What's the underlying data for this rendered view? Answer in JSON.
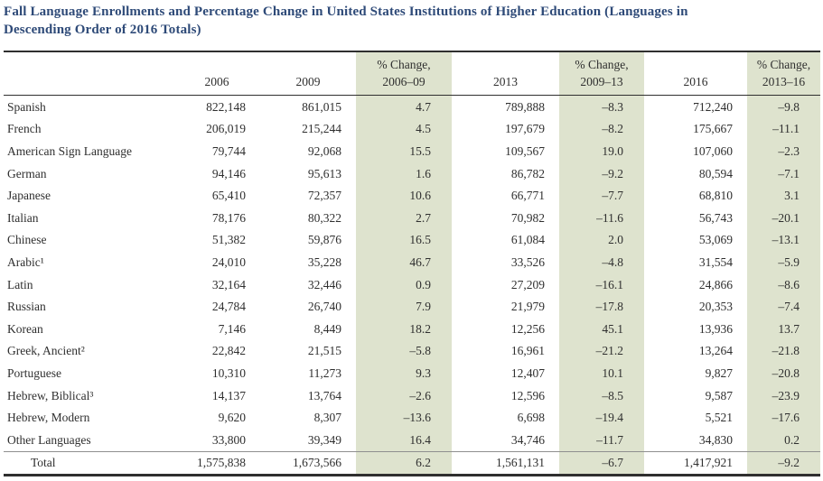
{
  "title": {
    "line1": "Fall Language Enrollments and Percentage Change in United States Institutions of Higher Education (Languages in",
    "line2": "Descending Order of 2016 Totals)"
  },
  "colors": {
    "title_text": "#2e4a78",
    "shaded_column": "#dee3ce",
    "rule": "#2f2f2f"
  },
  "table": {
    "columns": [
      {
        "id": "language",
        "header_line1": "",
        "header_line2": "",
        "shaded": false
      },
      {
        "id": "2006",
        "header_line1": "",
        "header_line2": "2006",
        "shaded": false
      },
      {
        "id": "2009",
        "header_line1": "",
        "header_line2": "2009",
        "shaded": false
      },
      {
        "id": "pct-change-2006-09",
        "header_line1": "% Change,",
        "header_line2": "2006–09",
        "shaded": true
      },
      {
        "id": "2013",
        "header_line1": "",
        "header_line2": "2013",
        "shaded": false
      },
      {
        "id": "pct-change-2009-13",
        "header_line1": "% Change,",
        "header_line2": "2009–13",
        "shaded": true
      },
      {
        "id": "2016",
        "header_line1": "",
        "header_line2": "2016",
        "shaded": false
      },
      {
        "id": "pct-change-2013-16",
        "header_line1": "% Change,",
        "header_line2": "2013–16",
        "shaded": true
      }
    ],
    "rows": [
      {
        "language": "Spanish",
        "values": [
          "822,148",
          "861,015",
          "4.7",
          "789,888",
          "–8.3",
          "712,240",
          "–9.8"
        ]
      },
      {
        "language": "French",
        "values": [
          "206,019",
          "215,244",
          "4.5",
          "197,679",
          "–8.2",
          "175,667",
          "–11.1"
        ]
      },
      {
        "language": "American Sign Language",
        "values": [
          "79,744",
          "92,068",
          "15.5",
          "109,567",
          "19.0",
          "107,060",
          "–2.3"
        ]
      },
      {
        "language": "German",
        "values": [
          "94,146",
          "95,613",
          "1.6",
          "86,782",
          "–9.2",
          "80,594",
          "–7.1"
        ]
      },
      {
        "language": "Japanese",
        "values": [
          "65,410",
          "72,357",
          "10.6",
          "66,771",
          "–7.7",
          "68,810",
          "3.1"
        ]
      },
      {
        "language": "Italian",
        "values": [
          "78,176",
          "80,322",
          "2.7",
          "70,982",
          "–11.6",
          "56,743",
          "–20.1"
        ]
      },
      {
        "language": "Chinese",
        "values": [
          "51,382",
          "59,876",
          "16.5",
          "61,084",
          "2.0",
          "53,069",
          "–13.1"
        ]
      },
      {
        "language": "Arabic¹",
        "values": [
          "24,010",
          "35,228",
          "46.7",
          "33,526",
          "–4.8",
          "31,554",
          "–5.9"
        ]
      },
      {
        "language": "Latin",
        "values": [
          "32,164",
          "32,446",
          "0.9",
          "27,209",
          "–16.1",
          "24,866",
          "–8.6"
        ]
      },
      {
        "language": "Russian",
        "values": [
          "24,784",
          "26,740",
          "7.9",
          "21,979",
          "–17.8",
          "20,353",
          "–7.4"
        ]
      },
      {
        "language": "Korean",
        "values": [
          "7,146",
          "8,449",
          "18.2",
          "12,256",
          "45.1",
          "13,936",
          "13.7"
        ]
      },
      {
        "language": "Greek, Ancient²",
        "values": [
          "22,842",
          "21,515",
          "–5.8",
          "16,961",
          "–21.2",
          "13,264",
          "–21.8"
        ]
      },
      {
        "language": "Portuguese",
        "values": [
          "10,310",
          "11,273",
          "9.3",
          "12,407",
          "10.1",
          "9,827",
          "–20.8"
        ]
      },
      {
        "language": "Hebrew, Biblical³",
        "values": [
          "14,137",
          "13,764",
          "–2.6",
          "12,596",
          "–8.5",
          "9,587",
          "–23.9"
        ]
      },
      {
        "language": "Hebrew, Modern",
        "values": [
          "9,620",
          "8,307",
          "–13.6",
          "6,698",
          "–19.4",
          "5,521",
          "–17.6"
        ]
      },
      {
        "language": "Other Languages",
        "values": [
          "33,800",
          "39,349",
          "16.4",
          "34,746",
          "–11.7",
          "34,830",
          "0.2"
        ]
      }
    ],
    "total_row": {
      "language": "Total",
      "values": [
        "1,575,838",
        "1,673,566",
        "6.2",
        "1,561,131",
        "–6.7",
        "1,417,921",
        "–9.2"
      ]
    }
  }
}
